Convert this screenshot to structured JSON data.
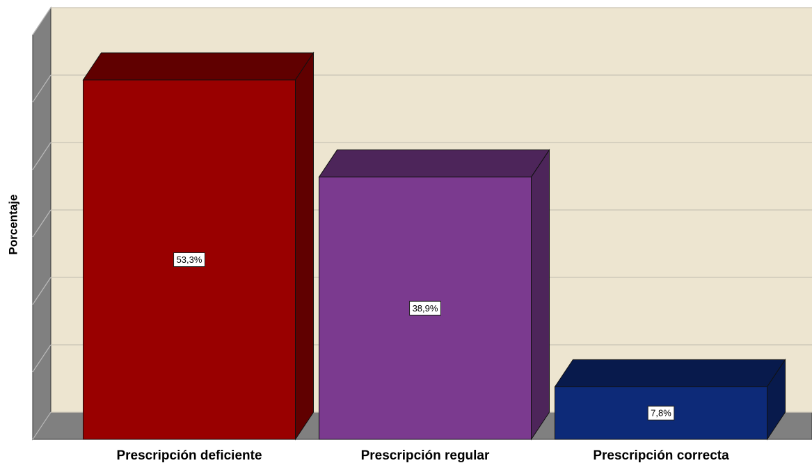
{
  "chart_data": {
    "type": "bar3d",
    "y_label": "Porcentaje",
    "categories": [
      "Prescripción deficiente",
      "Prescripción regular",
      "Prescripción correcta"
    ],
    "values": [
      53.3,
      38.9,
      7.8
    ],
    "value_labels": [
      "53,3%",
      "38,9%",
      "7,8%"
    ],
    "colors": [
      "#990000",
      "#7b3a8f",
      "#0d2a78"
    ],
    "ylim": [
      0,
      60
    ],
    "yticks": [
      0,
      10,
      20,
      30,
      40,
      50,
      60
    ],
    "grid": true
  }
}
